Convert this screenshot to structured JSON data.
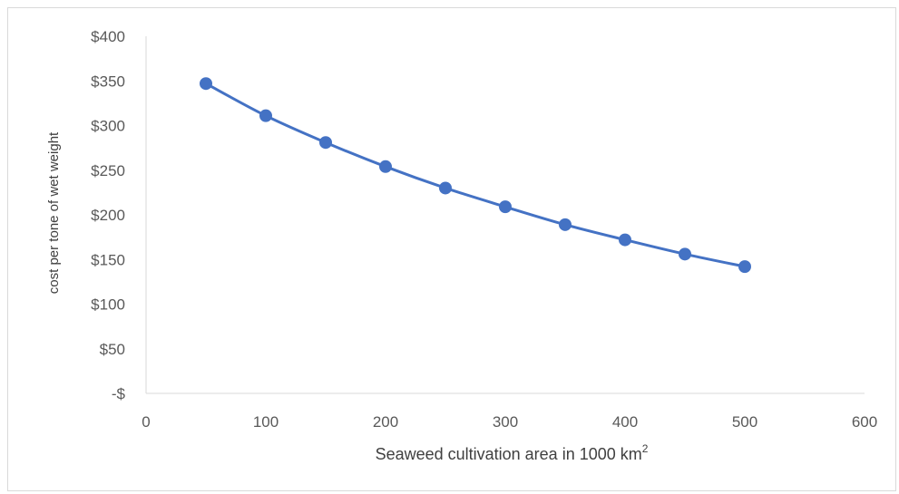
{
  "chart_data": {
    "type": "line",
    "title": "",
    "xlabel": "Seaweed cultivation area in 1000 km",
    "xlabel_superscript": "2",
    "ylabel": "cost per tone of wet weight",
    "xlim": [
      0,
      600
    ],
    "ylim": [
      0,
      400
    ],
    "x_ticks": [
      "0",
      "100",
      "200",
      "300",
      "400",
      "500",
      "600"
    ],
    "y_ticks": [
      "-$",
      "$50",
      "$100",
      "$150",
      "$200",
      "$250",
      "$300",
      "$350",
      "$400"
    ],
    "x_tick_values": [
      0,
      100,
      200,
      300,
      400,
      500,
      600
    ],
    "y_tick_values": [
      0,
      50,
      100,
      150,
      200,
      250,
      300,
      350,
      400
    ],
    "grid": false,
    "legend": "none",
    "series": [
      {
        "color": "#4472c4",
        "marker": "circle",
        "smooth": true,
        "x": [
          50,
          100,
          150,
          200,
          250,
          300,
          350,
          400,
          450,
          500
        ],
        "y": [
          347,
          311,
          281,
          254,
          230,
          209,
          189,
          172,
          156,
          142
        ]
      }
    ]
  }
}
